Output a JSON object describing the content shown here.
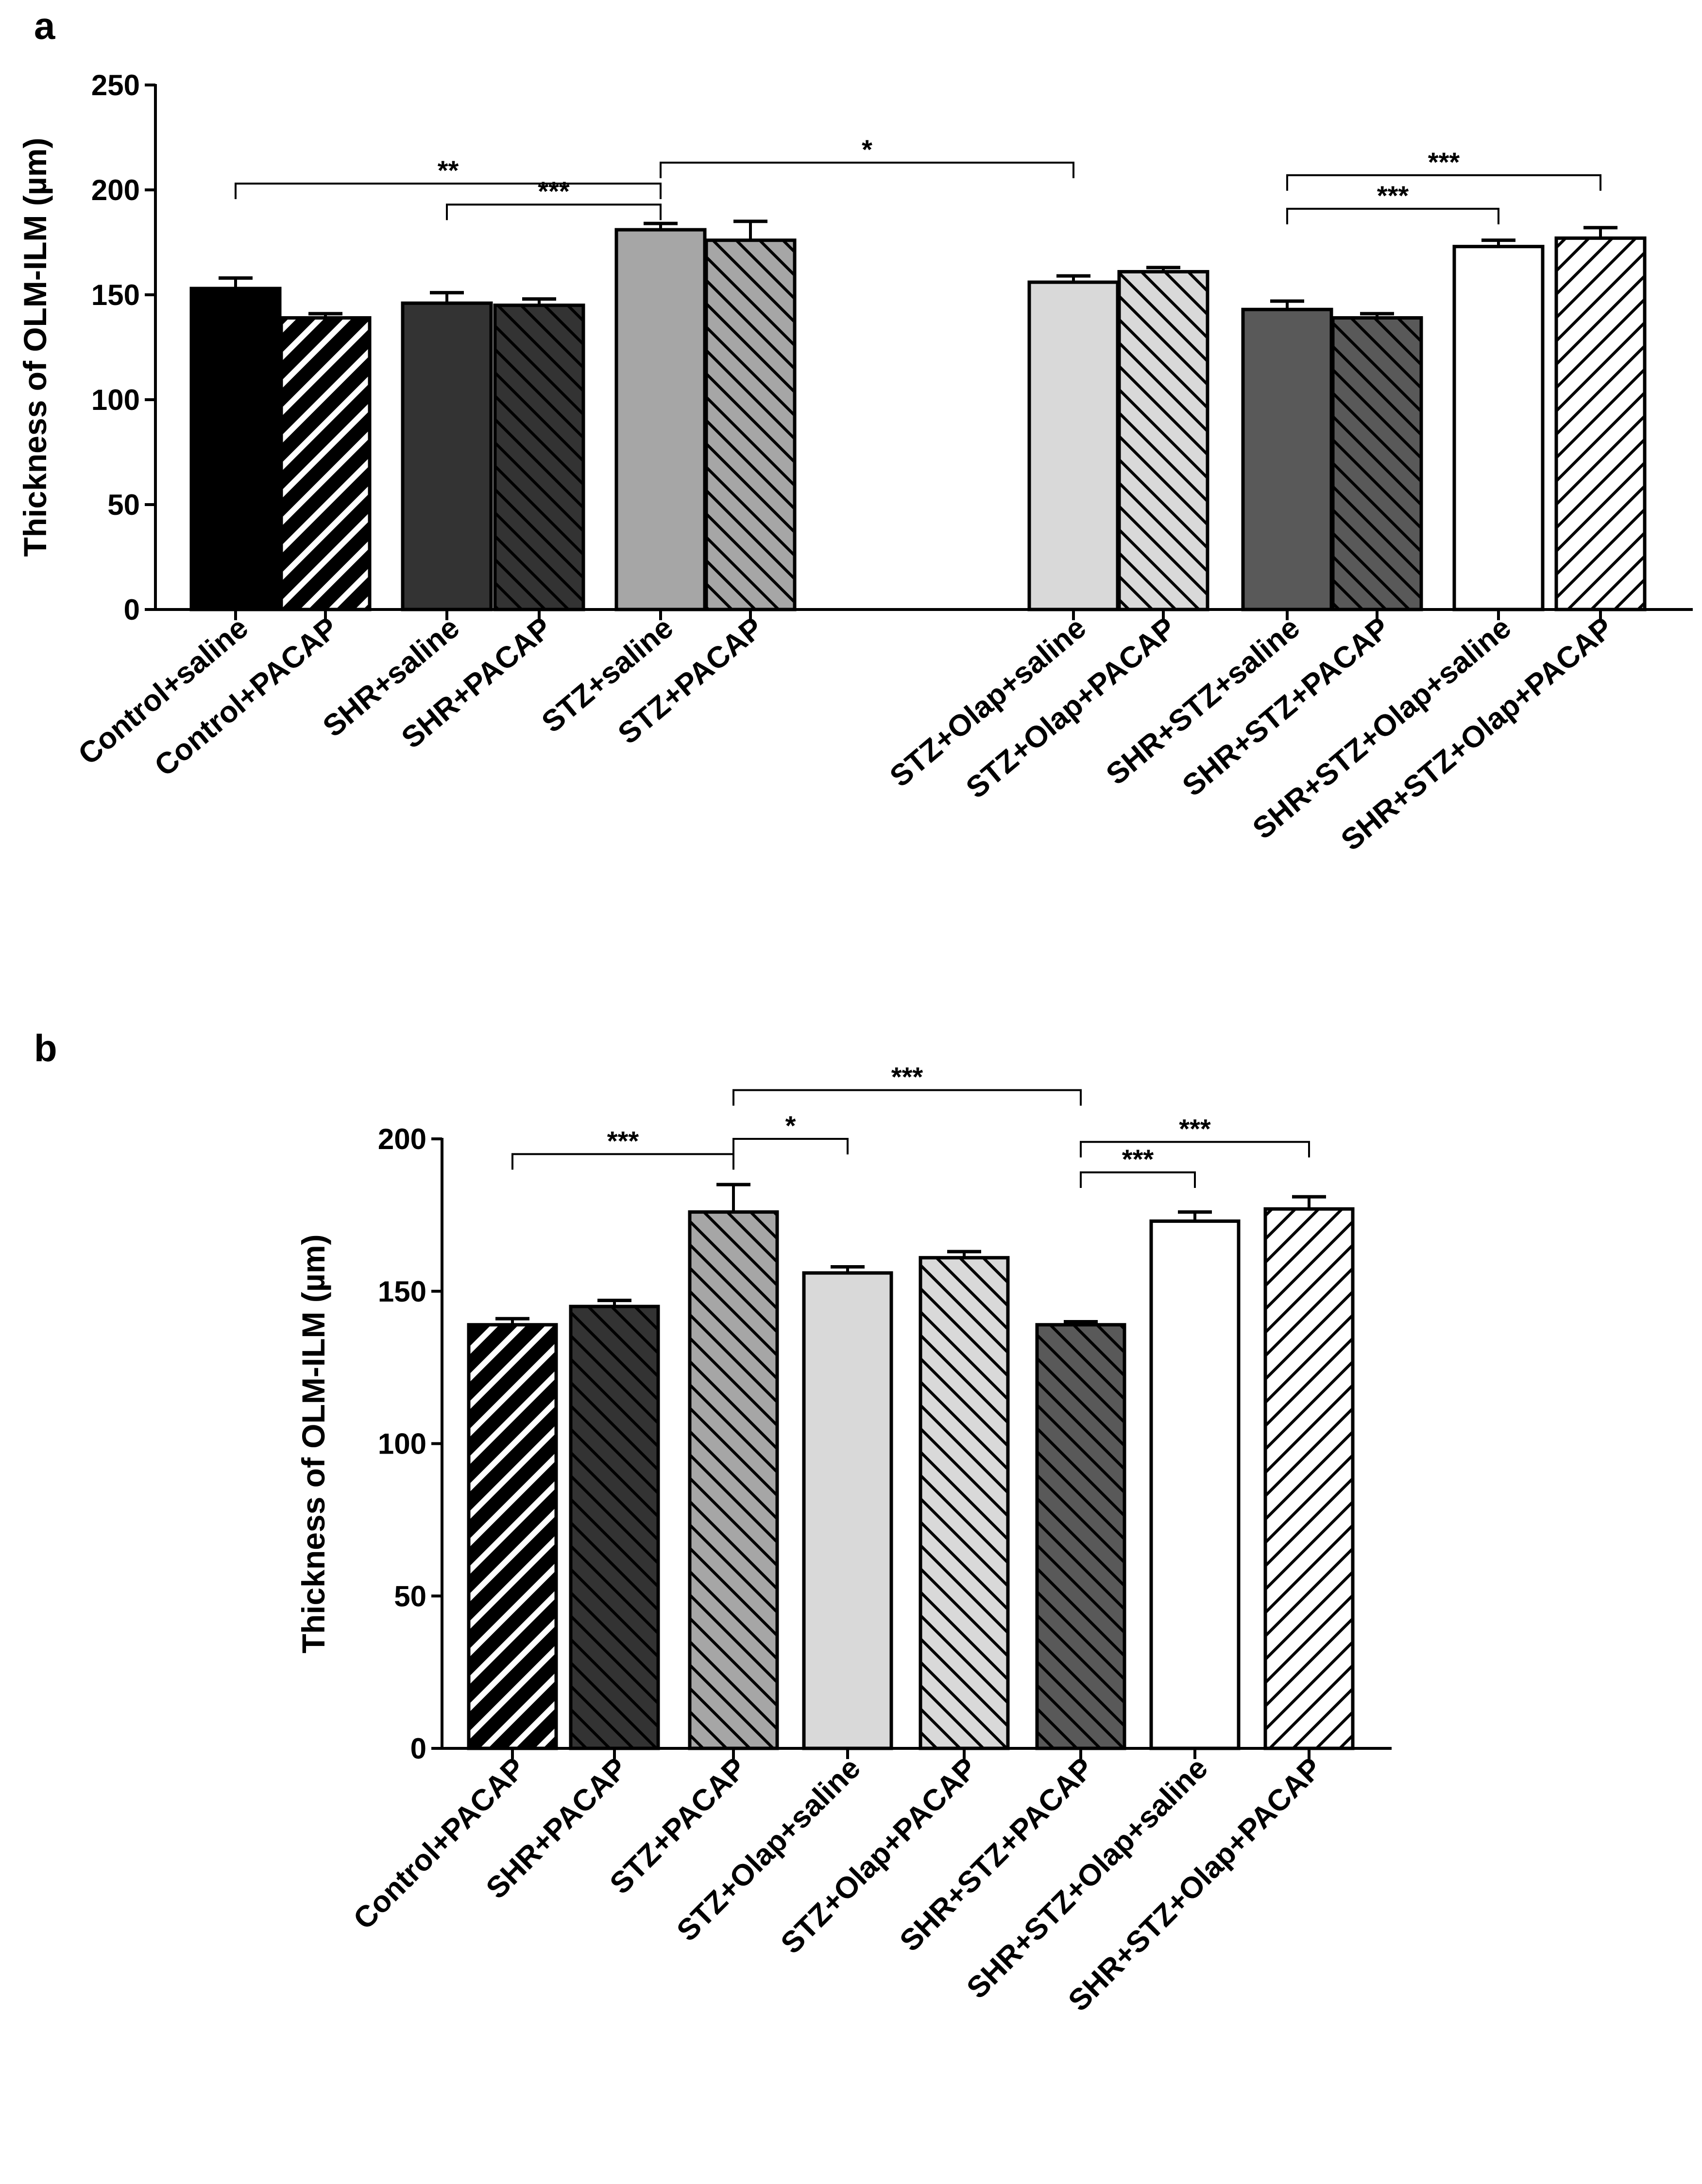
{
  "panels": {
    "a": {
      "label": "a"
    },
    "b": {
      "label": "b"
    }
  },
  "chart_data": [
    {
      "panel": "a",
      "type": "bar",
      "title": "",
      "xlabel": "",
      "ylabel": "Thickness of OLM-ILM (µm)",
      "ylim": [
        0,
        250
      ],
      "yticks": [
        0,
        50,
        100,
        150,
        200,
        250
      ],
      "categories": [
        "Control+saline",
        "Control+PACAP",
        "SHR+saline",
        "SHR+PACAP",
        "STZ+saline",
        "STZ+PACAP",
        "STZ+Olap+saline",
        "STZ+Olap+PACAP",
        "SHR+STZ+saline",
        "SHR+STZ+PACAP",
        "SHR+STZ+Olap+saline",
        "SHR+STZ+Olap+PACAP"
      ],
      "values": [
        153,
        139,
        146,
        145,
        181,
        176,
        156,
        161,
        143,
        139,
        173,
        177
      ],
      "errors": [
        5,
        2,
        5,
        3,
        3,
        9,
        3,
        2,
        4,
        2,
        3,
        5
      ],
      "fills": [
        {
          "color": "#000000",
          "hatch": "none"
        },
        {
          "color": "#000000",
          "hatch": "white-back"
        },
        {
          "color": "#333333",
          "hatch": "none"
        },
        {
          "color": "#333333",
          "hatch": "black-forward"
        },
        {
          "color": "#a6a6a6",
          "hatch": "none"
        },
        {
          "color": "#a6a6a6",
          "hatch": "black-forward"
        },
        {
          "color": "#d9d9d9",
          "hatch": "none"
        },
        {
          "color": "#d9d9d9",
          "hatch": "black-forward"
        },
        {
          "color": "#595959",
          "hatch": "none"
        },
        {
          "color": "#595959",
          "hatch": "black-forward"
        },
        {
          "color": "#ffffff",
          "hatch": "none"
        },
        {
          "color": "#ffffff",
          "hatch": "black-back"
        }
      ],
      "significance": [
        {
          "from": 0,
          "to": 4,
          "y": 203,
          "label": "**"
        },
        {
          "from": 2,
          "to": 4,
          "y": 193,
          "label": "***"
        },
        {
          "from": 4,
          "to": 6,
          "y": 213,
          "label": "*"
        },
        {
          "from": 8,
          "to": 11,
          "y": 207,
          "label": "***"
        },
        {
          "from": 8,
          "to": 10,
          "y": 191,
          "label": "***"
        }
      ]
    },
    {
      "panel": "b",
      "type": "bar",
      "title": "",
      "xlabel": "",
      "ylabel": "Thickness of OLM-ILM (µm)",
      "ylim": [
        0,
        200
      ],
      "yticks": [
        0,
        50,
        100,
        150,
        200
      ],
      "categories": [
        "Control+PACAP",
        "SHR+PACAP",
        "STZ+PACAP",
        "STZ+Olap+saline",
        "STZ+Olap+PACAP",
        "SHR+STZ+PACAP",
        "SHR+STZ+Olap+saline",
        "SHR+STZ+Olap+PACAP"
      ],
      "values": [
        139,
        145,
        176,
        156,
        161,
        139,
        173,
        177
      ],
      "errors": [
        2,
        2,
        9,
        2,
        2,
        1,
        3,
        4
      ],
      "fills": [
        {
          "color": "#000000",
          "hatch": "white-back"
        },
        {
          "color": "#333333",
          "hatch": "black-forward"
        },
        {
          "color": "#a6a6a6",
          "hatch": "black-forward"
        },
        {
          "color": "#d9d9d9",
          "hatch": "none"
        },
        {
          "color": "#d9d9d9",
          "hatch": "black-forward"
        },
        {
          "color": "#595959",
          "hatch": "black-forward"
        },
        {
          "color": "#ffffff",
          "hatch": "none"
        },
        {
          "color": "#ffffff",
          "hatch": "black-back"
        }
      ],
      "significance": [
        {
          "from": 0,
          "to": 2,
          "y": 195,
          "label": "***"
        },
        {
          "from": 2,
          "to": 3,
          "y": 200,
          "label": "*"
        },
        {
          "from": 2,
          "to": 5,
          "y": 216,
          "label": "***"
        },
        {
          "from": 5,
          "to": 7,
          "y": 199,
          "label": "***"
        },
        {
          "from": 5,
          "to": 6,
          "y": 189,
          "label": "***"
        }
      ]
    }
  ]
}
